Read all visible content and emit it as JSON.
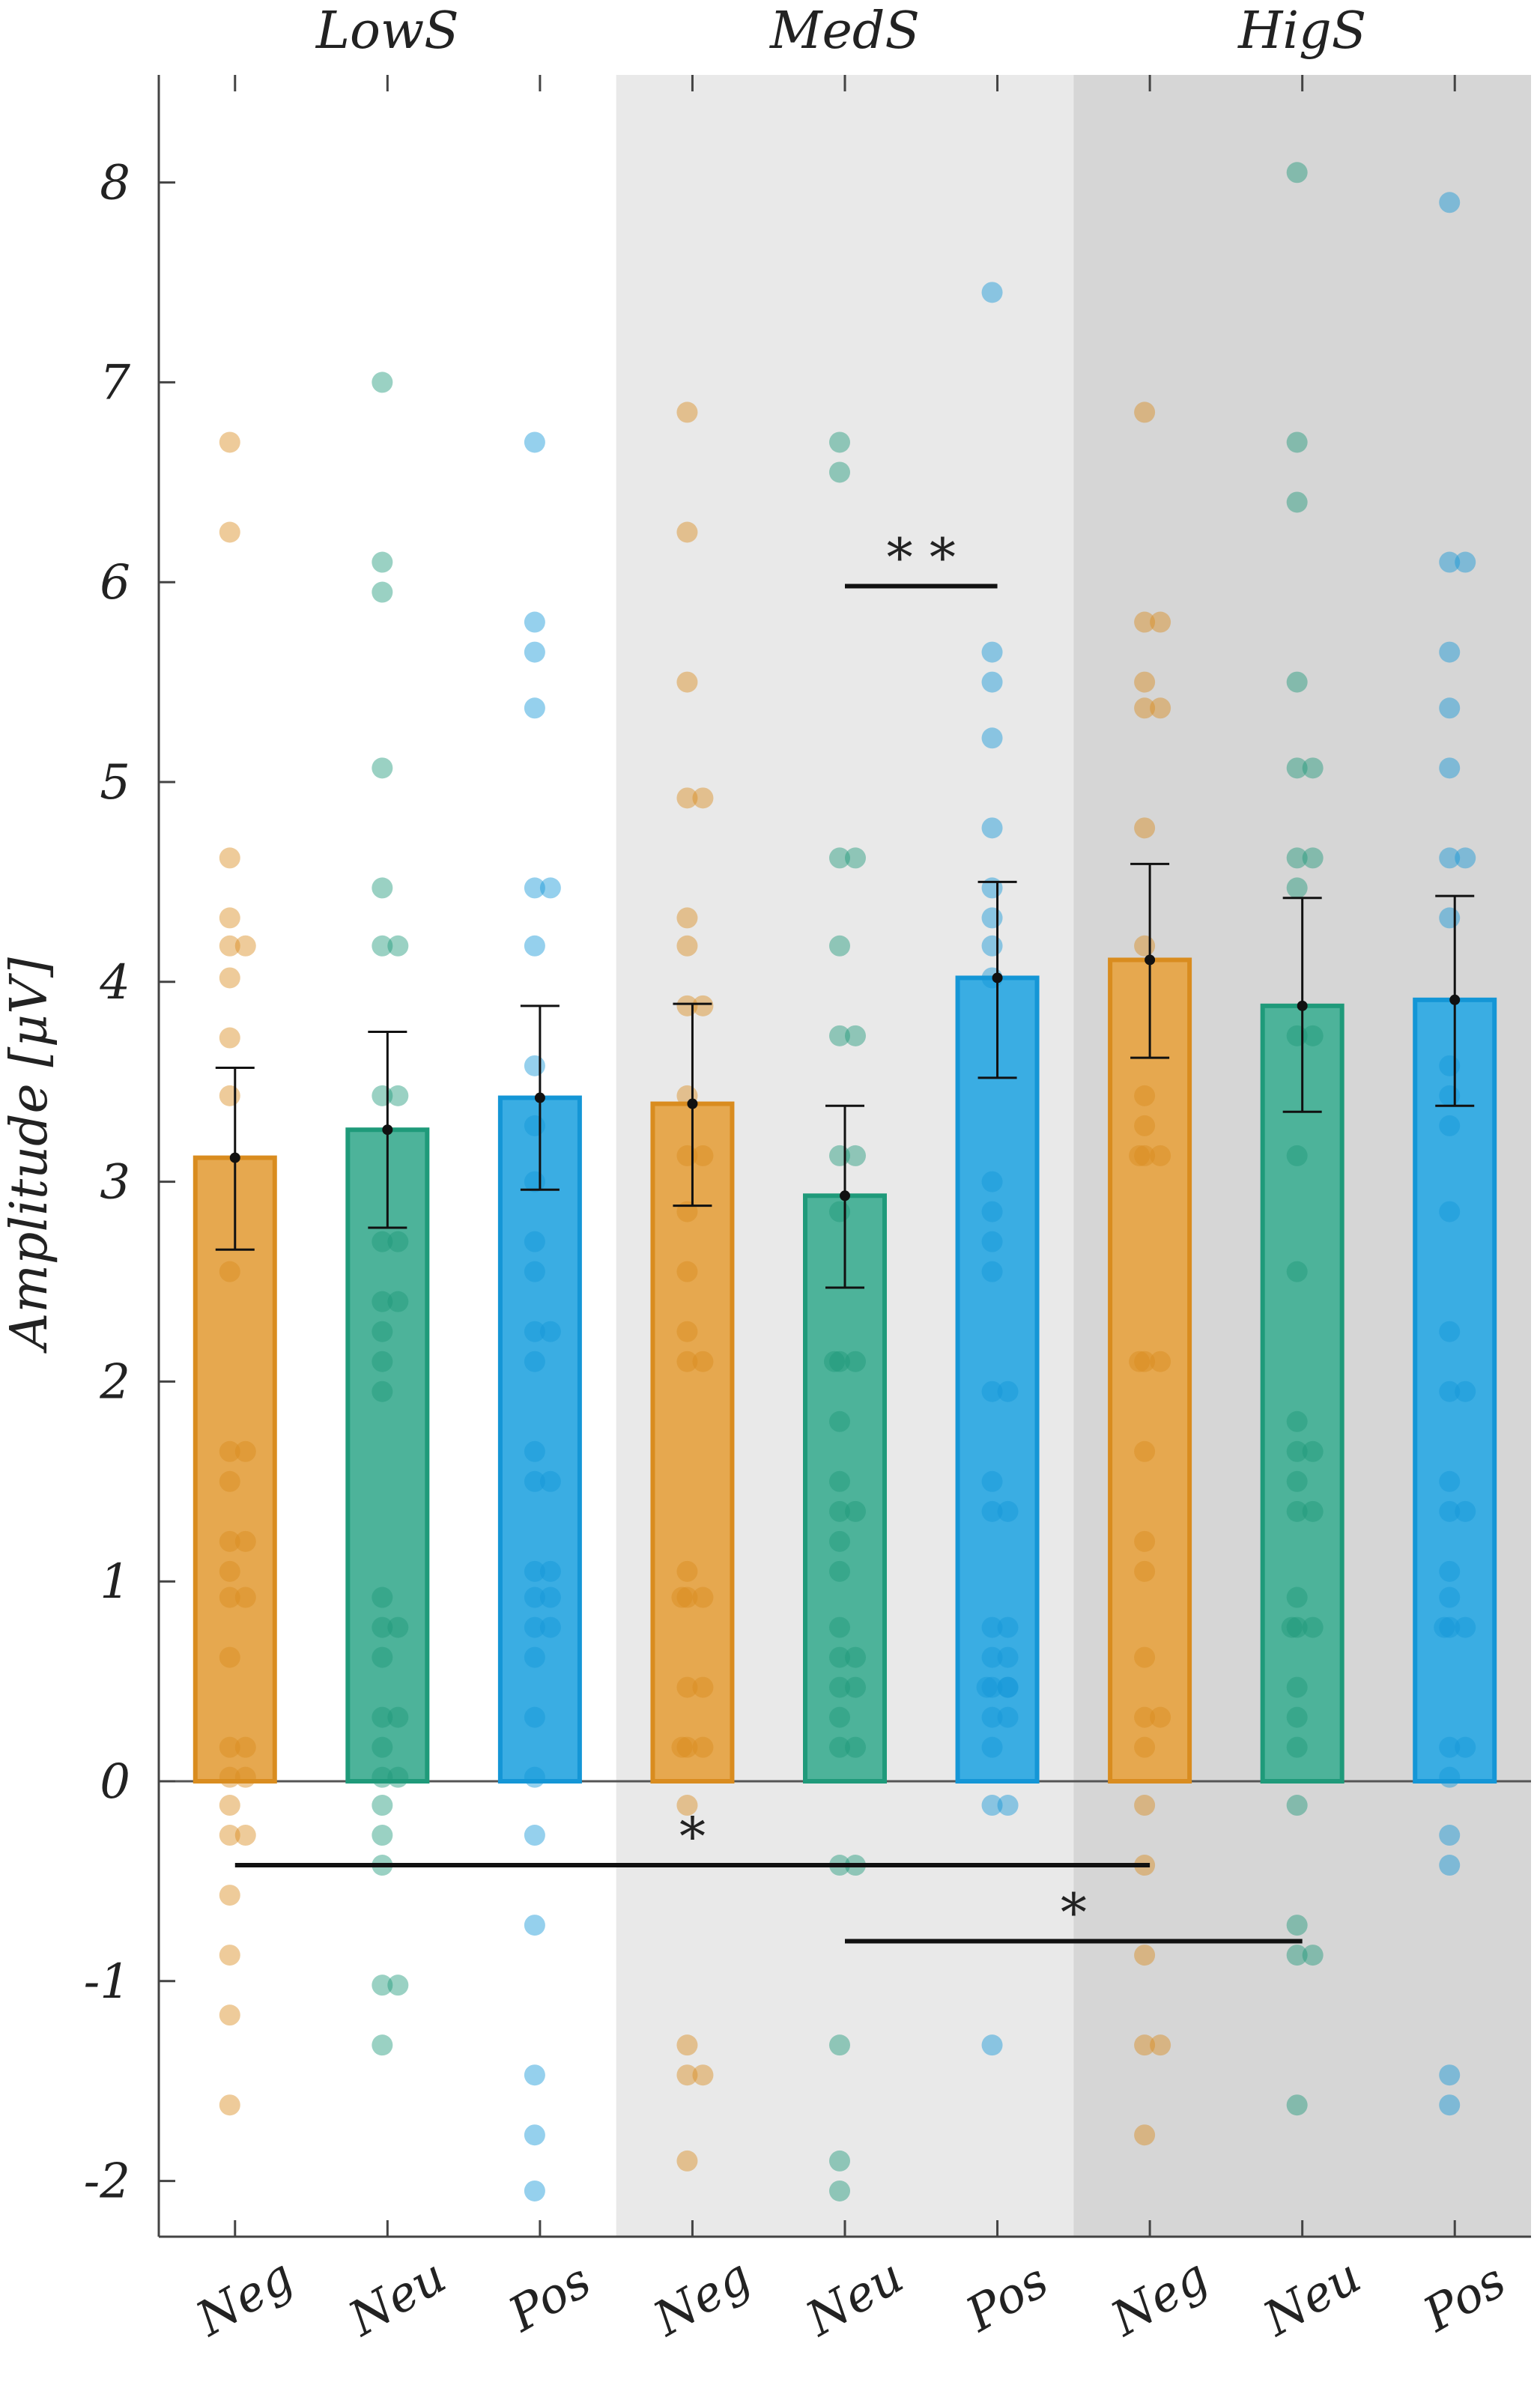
{
  "chart_data": {
    "type": "bar",
    "ylabel": "Amplitude [μV]",
    "ylim": [
      -2.25,
      8.5
    ],
    "yticks": [
      -2,
      -1,
      0,
      1,
      2,
      3,
      4,
      5,
      6,
      7,
      8
    ],
    "ytick_labels": [
      "-2",
      "-1",
      "0",
      "1",
      "2",
      "3",
      "4",
      "5",
      "6",
      "7",
      "8"
    ],
    "groups": [
      {
        "name": "LowS",
        "shade": "#ffffff"
      },
      {
        "name": "MedS",
        "shade": "#e9e9e9"
      },
      {
        "name": "HigS",
        "shade": "#d6d6d6"
      }
    ],
    "categories": [
      "Neg",
      "Neu",
      "Pos",
      "Neg",
      "Neu",
      "Pos",
      "Neg",
      "Neu",
      "Pos"
    ],
    "colors": {
      "Neg": {
        "fill": "#E6A84F",
        "edge": "#D98C1F"
      },
      "Neu": {
        "fill": "#4DB39A",
        "edge": "#1F9A7A"
      },
      "Pos": {
        "fill": "#3AADE3",
        "edge": "#1496D6"
      }
    },
    "bars": [
      {
        "group": "LowS",
        "category": "Neg",
        "mean": 3.12,
        "err_low": 2.66,
        "err_high": 3.57,
        "points": [
          6.7,
          6.25,
          4.62,
          4.32,
          4.18,
          4.18,
          4.02,
          3.72,
          3.43,
          2.55,
          1.65,
          1.65,
          1.5,
          1.2,
          1.2,
          1.05,
          0.92,
          0.92,
          0.62,
          0.17,
          0.17,
          0.02,
          0.02,
          -0.12,
          -0.27,
          -0.27,
          -0.57,
          -0.87,
          -1.17,
          -1.62
        ]
      },
      {
        "group": "LowS",
        "category": "Neu",
        "mean": 3.26,
        "err_low": 2.77,
        "err_high": 3.75,
        "points": [
          7.0,
          6.1,
          5.95,
          5.07,
          4.47,
          4.18,
          4.18,
          3.43,
          3.43,
          2.7,
          2.7,
          2.4,
          2.4,
          2.25,
          2.1,
          1.95,
          0.92,
          0.77,
          0.77,
          0.62,
          0.32,
          0.32,
          0.17,
          0.02,
          0.02,
          -0.12,
          -0.27,
          -0.42,
          -1.02,
          -1.02,
          -1.32
        ]
      },
      {
        "group": "LowS",
        "category": "Pos",
        "mean": 3.42,
        "err_low": 2.96,
        "err_high": 3.88,
        "points": [
          6.7,
          5.8,
          5.65,
          5.37,
          4.47,
          4.47,
          4.18,
          3.58,
          3.28,
          3.0,
          2.7,
          2.55,
          2.25,
          2.25,
          2.1,
          1.65,
          1.5,
          1.5,
          1.05,
          1.05,
          0.92,
          0.92,
          0.77,
          0.77,
          0.62,
          0.32,
          0.02,
          -0.27,
          -0.72,
          -1.47,
          -1.77,
          -2.05
        ]
      },
      {
        "group": "MedS",
        "category": "Neg",
        "mean": 3.39,
        "err_low": 2.88,
        "err_high": 3.89,
        "points": [
          6.85,
          6.25,
          5.5,
          4.92,
          4.92,
          4.32,
          4.18,
          3.88,
          3.88,
          3.43,
          3.13,
          3.13,
          2.85,
          2.55,
          2.25,
          2.1,
          2.1,
          1.05,
          0.92,
          0.92,
          0.92,
          0.47,
          0.47,
          0.17,
          0.17,
          0.17,
          -0.12,
          -1.32,
          -1.47,
          -1.47,
          -1.9
        ]
      },
      {
        "group": "MedS",
        "category": "Neu",
        "mean": 2.93,
        "err_low": 2.47,
        "err_high": 3.38,
        "points": [
          6.7,
          6.55,
          4.62,
          4.62,
          4.18,
          3.73,
          3.73,
          3.13,
          3.13,
          2.85,
          2.1,
          2.1,
          2.1,
          1.8,
          1.5,
          1.35,
          1.35,
          1.2,
          1.05,
          0.77,
          0.62,
          0.62,
          0.47,
          0.47,
          0.32,
          0.17,
          0.17,
          -0.42,
          -0.42,
          -1.32,
          -1.9,
          -2.05
        ]
      },
      {
        "group": "MedS",
        "category": "Pos",
        "mean": 4.02,
        "err_low": 3.52,
        "err_high": 4.5,
        "points": [
          7.45,
          5.65,
          5.5,
          5.22,
          4.77,
          4.47,
          4.32,
          4.18,
          4.02,
          3.0,
          2.85,
          2.7,
          2.55,
          1.95,
          1.95,
          1.5,
          1.35,
          1.35,
          0.77,
          0.77,
          0.62,
          0.62,
          0.47,
          0.47,
          0.47,
          0.47,
          0.32,
          0.32,
          0.17,
          -0.12,
          -0.12,
          -1.32
        ]
      },
      {
        "group": "HigS",
        "category": "Neg",
        "mean": 4.11,
        "err_low": 3.62,
        "err_high": 4.59,
        "points": [
          6.85,
          5.8,
          5.8,
          5.5,
          5.37,
          5.37,
          4.77,
          4.18,
          3.43,
          3.28,
          3.13,
          3.13,
          3.13,
          2.1,
          2.1,
          2.1,
          1.65,
          1.2,
          1.05,
          0.62,
          0.32,
          0.32,
          0.17,
          -0.12,
          -0.42,
          -0.87,
          -1.32,
          -1.32,
          -1.77
        ]
      },
      {
        "group": "HigS",
        "category": "Neu",
        "mean": 3.88,
        "err_low": 3.35,
        "err_high": 4.42,
        "points": [
          8.05,
          6.7,
          6.4,
          5.5,
          5.07,
          5.07,
          4.62,
          4.62,
          4.47,
          3.73,
          3.73,
          3.13,
          2.55,
          1.8,
          1.65,
          1.65,
          1.5,
          1.35,
          1.35,
          0.92,
          0.77,
          0.77,
          0.77,
          0.47,
          0.32,
          0.17,
          -0.12,
          -0.72,
          -0.87,
          -0.87,
          -1.62
        ]
      },
      {
        "group": "HigS",
        "category": "Pos",
        "mean": 3.91,
        "err_low": 3.38,
        "err_high": 4.43,
        "points": [
          7.9,
          6.1,
          6.1,
          5.65,
          5.37,
          5.07,
          4.62,
          4.62,
          4.32,
          3.58,
          3.43,
          3.28,
          2.85,
          2.25,
          1.95,
          1.95,
          1.5,
          1.35,
          1.35,
          1.05,
          0.92,
          0.77,
          0.77,
          0.77,
          0.17,
          0.17,
          0.02,
          -0.27,
          -0.42,
          -1.47,
          -1.62
        ]
      }
    ],
    "significance": [
      {
        "from": 4,
        "to": 5,
        "y": 5.98,
        "label": "* *"
      },
      {
        "from": 0,
        "to": 6,
        "y": -0.42,
        "label": "*"
      },
      {
        "from": 4,
        "to": 7,
        "y": -0.8,
        "label": "*"
      }
    ]
  }
}
